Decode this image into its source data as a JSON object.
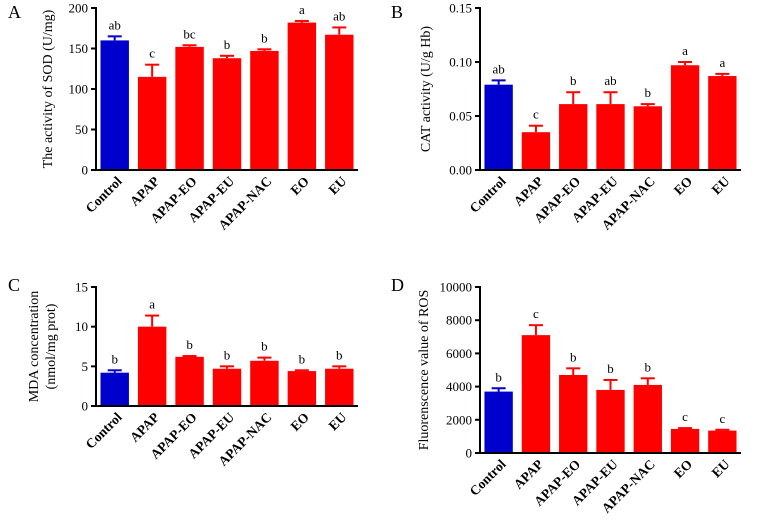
{
  "chart_data": [
    {
      "type": "bar",
      "panel": "A",
      "title": "",
      "xlabel": "",
      "ylabel": "The activity of SOD (U/mg)",
      "ylim": [
        0,
        200
      ],
      "yticks": [
        "0",
        "50",
        "100",
        "150",
        "200"
      ],
      "categories": [
        "Control",
        "APAP",
        "APAP-EO",
        "APAP-EU",
        "APAP-NAC",
        "EO",
        "EU"
      ],
      "values": [
        160,
        115,
        152,
        138,
        147,
        182,
        167
      ],
      "errors": [
        5,
        15,
        2,
        3,
        2,
        2,
        9
      ],
      "labels": [
        "ab",
        "c",
        "bc",
        "b",
        "b",
        "a",
        "ab"
      ],
      "colors": [
        "#0000cc",
        "#ff0000",
        "#ff0000",
        "#ff0000",
        "#ff0000",
        "#ff0000",
        "#ff0000"
      ]
    },
    {
      "type": "bar",
      "panel": "B",
      "title": "",
      "xlabel": "",
      "ylabel": "CAT activity (U/g Hb)",
      "ylim": [
        0,
        0.15
      ],
      "yticks": [
        "0.00",
        "0.05",
        "0.10",
        "0.15"
      ],
      "categories": [
        "Control",
        "APAP",
        "APAP-EO",
        "APAP-EU",
        "APAP-NAC",
        "EO",
        "EU"
      ],
      "values": [
        0.079,
        0.035,
        0.061,
        0.061,
        0.059,
        0.097,
        0.087
      ],
      "errors": [
        0.004,
        0.006,
        0.011,
        0.011,
        0.002,
        0.003,
        0.002
      ],
      "labels": [
        "ab",
        "c",
        "b",
        "ab",
        "b",
        "a",
        "a"
      ],
      "colors": [
        "#0000cc",
        "#ff0000",
        "#ff0000",
        "#ff0000",
        "#ff0000",
        "#ff0000",
        "#ff0000"
      ]
    },
    {
      "type": "bar",
      "panel": "C",
      "title": "",
      "xlabel": "",
      "ylabel": "MDA concentration",
      "ylabel2": "(nmol/mg prot)",
      "ylim": [
        0,
        15
      ],
      "yticks": [
        "0",
        "5",
        "10",
        "15"
      ],
      "categories": [
        "Control",
        "APAP",
        "APAP-EO",
        "APAP-EU",
        "APAP-NAC",
        "EO",
        "EU"
      ],
      "values": [
        4.2,
        10.0,
        6.2,
        4.7,
        5.7,
        4.4,
        4.7
      ],
      "errors": [
        0.3,
        1.4,
        0.1,
        0.3,
        0.4,
        0.1,
        0.3
      ],
      "labels": [
        "b",
        "a",
        "b",
        "b",
        "b",
        "b",
        "b"
      ],
      "colors": [
        "#0000cc",
        "#ff0000",
        "#ff0000",
        "#ff0000",
        "#ff0000",
        "#ff0000",
        "#ff0000"
      ]
    },
    {
      "type": "bar",
      "panel": "D",
      "title": "",
      "xlabel": "",
      "ylabel": "Fluorenscence value of ROS",
      "ylim": [
        0,
        10000
      ],
      "yticks": [
        "0",
        "2000",
        "4000",
        "6000",
        "8000",
        "10000"
      ],
      "categories": [
        "Control",
        "APAP",
        "APAP-EO",
        "APAP-EU",
        "APAP-NAC",
        "EO",
        "EU"
      ],
      "values": [
        3700,
        7100,
        4700,
        3800,
        4100,
        1450,
        1350
      ],
      "errors": [
        200,
        600,
        400,
        600,
        400,
        50,
        50
      ],
      "labels": [
        "b",
        "c",
        "b",
        "b",
        "b",
        "c",
        "c"
      ],
      "colors": [
        "#0000cc",
        "#ff0000",
        "#ff0000",
        "#ff0000",
        "#ff0000",
        "#ff0000",
        "#ff0000"
      ]
    }
  ]
}
